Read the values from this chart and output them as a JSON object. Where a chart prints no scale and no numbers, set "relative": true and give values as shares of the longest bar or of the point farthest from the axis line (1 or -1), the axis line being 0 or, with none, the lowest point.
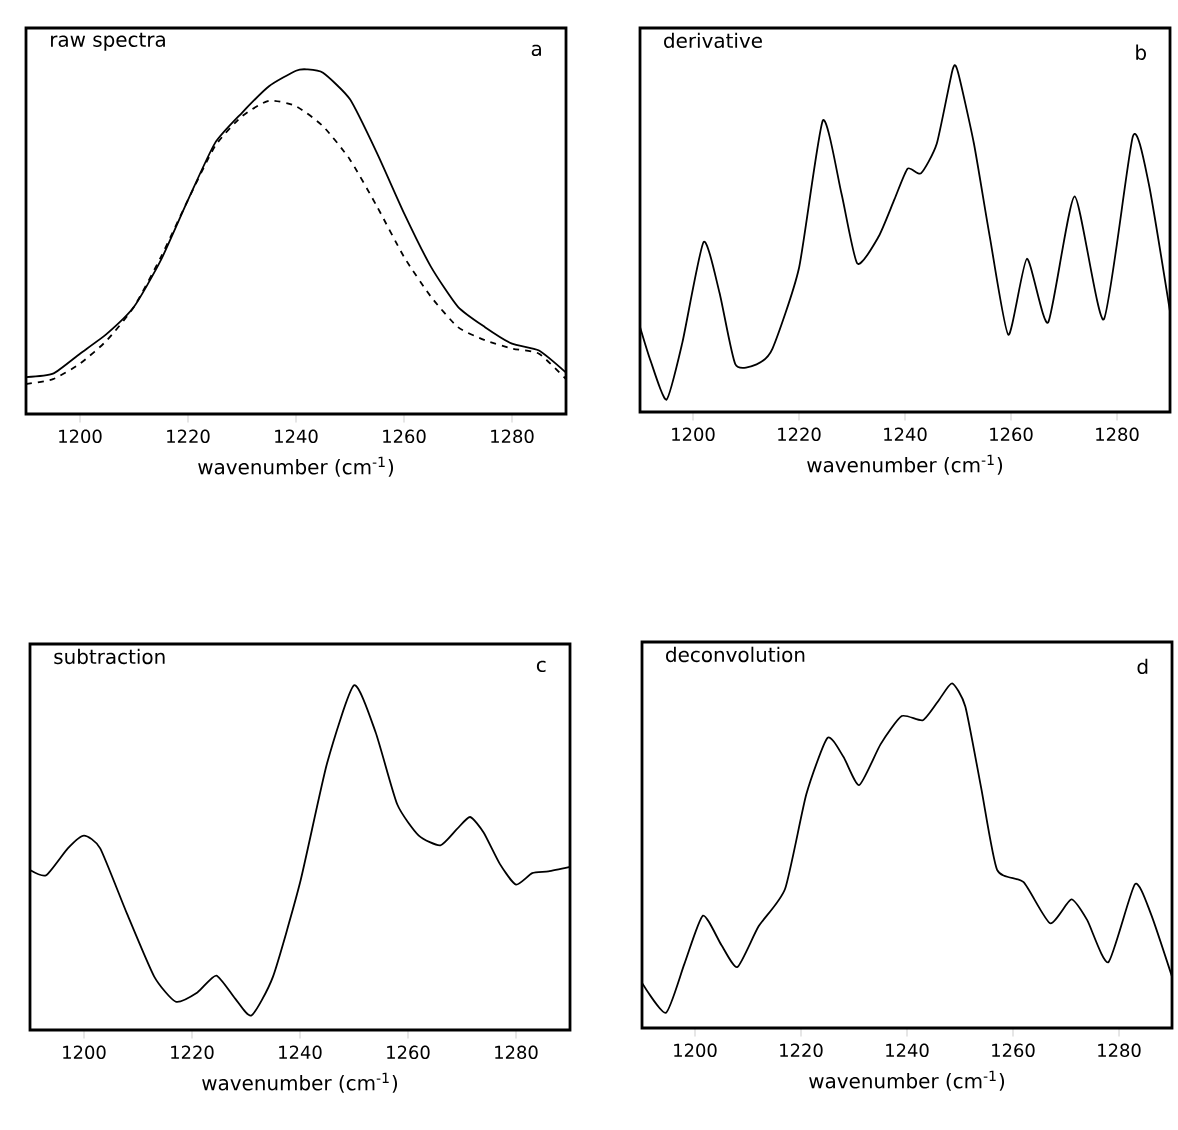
{
  "chart_data": [
    {
      "type": "line",
      "title": "raw spectra",
      "annotations": [
        "a"
      ],
      "xlabel": "wavenumber (cm$^{-1}$)",
      "relative": true,
      "xlim": [
        1190,
        1290
      ],
      "xticks": [
        1200,
        1220,
        1240,
        1260,
        1280
      ],
      "series": [
        {
          "color": "#000000",
          "line_style": "solid",
          "x": [
            1190,
            1195,
            1200,
            1205,
            1210,
            1215,
            1220,
            1225,
            1230,
            1235,
            1240,
            1242,
            1245,
            1250,
            1255,
            1260,
            1265,
            1270,
            1275,
            1280,
            1285,
            1290
          ],
          "values": [
            0.107,
            0.117,
            0.175,
            0.233,
            0.311,
            0.447,
            0.621,
            0.786,
            0.874,
            0.951,
            0.996,
            1.0,
            0.99,
            0.913,
            0.757,
            0.583,
            0.427,
            0.311,
            0.252,
            0.204,
            0.184,
            0.12
          ]
        },
        {
          "color": "#000000",
          "line_style": "dashed",
          "x": [
            1190,
            1195,
            1200,
            1205,
            1210,
            1215,
            1220,
            1225,
            1230,
            1235,
            1240,
            1245,
            1250,
            1255,
            1260,
            1265,
            1270,
            1275,
            1280,
            1285,
            1290
          ],
          "values": [
            0.087,
            0.101,
            0.146,
            0.214,
            0.311,
            0.456,
            0.621,
            0.777,
            0.864,
            0.909,
            0.893,
            0.835,
            0.738,
            0.602,
            0.456,
            0.34,
            0.252,
            0.214,
            0.19,
            0.175,
            0.101
          ]
        }
      ]
    },
    {
      "type": "line",
      "title": "derivative",
      "annotations": [
        "b"
      ],
      "xlabel": "wavenumber (cm$^{-1}$)",
      "relative": true,
      "xlim": [
        1190,
        1290
      ],
      "xticks": [
        1200,
        1220,
        1240,
        1260,
        1280
      ],
      "series": [
        {
          "color": "#000000",
          "x": [
            1190,
            1192,
            1195,
            1198,
            1202,
            1205,
            1208,
            1212,
            1215,
            1220,
            1224.5,
            1228,
            1231,
            1235,
            1238,
            1240.5,
            1243,
            1246,
            1249,
            1250,
            1253,
            1256,
            1259.5,
            1263,
            1267,
            1272,
            1277.5,
            1283,
            1286,
            1290
          ],
          "values": [
            0.248,
            0.149,
            0.036,
            0.203,
            0.496,
            0.348,
            0.139,
            0.139,
            0.185,
            0.42,
            0.85,
            0.638,
            0.433,
            0.511,
            0.62,
            0.71,
            0.696,
            0.783,
            1.0,
            0.991,
            0.783,
            0.511,
            0.225,
            0.447,
            0.261,
            0.629,
            0.27,
            0.804,
            0.665,
            0.293
          ]
        }
      ]
    },
    {
      "type": "line",
      "title": "subtraction",
      "annotations": [
        "c"
      ],
      "xlabel": "wavenumber (cm$^{-1}$)",
      "relative": true,
      "xlim": [
        1190,
        1290
      ],
      "xticks": [
        1200,
        1220,
        1240,
        1260,
        1280
      ],
      "series": [
        {
          "color": "#000000",
          "x": [
            1190,
            1193,
            1197,
            1200,
            1203,
            1208,
            1213,
            1217,
            1221,
            1224.5,
            1228,
            1231,
            1235,
            1240,
            1245,
            1250,
            1254,
            1258,
            1262,
            1266,
            1269,
            1271.5,
            1274,
            1277,
            1280,
            1283,
            1286,
            1290
          ],
          "values": [
            0.464,
            0.449,
            0.527,
            0.564,
            0.527,
            0.336,
            0.155,
            0.082,
            0.109,
            0.158,
            0.091,
            0.042,
            0.155,
            0.427,
            0.773,
            1.0,
            0.864,
            0.655,
            0.564,
            0.536,
            0.582,
            0.618,
            0.573,
            0.482,
            0.422,
            0.455,
            0.46,
            0.473
          ]
        }
      ]
    },
    {
      "type": "line",
      "title": "deconvolution",
      "annotations": [
        "d"
      ],
      "xlabel": "wavenumber (cm$^{-1}$)",
      "relative": true,
      "xlim": [
        1190,
        1290
      ],
      "xticks": [
        1200,
        1220,
        1240,
        1260,
        1280
      ],
      "series": [
        {
          "color": "#000000",
          "x": [
            1190,
            1194.5,
            1198,
            1201.5,
            1205,
            1208,
            1212,
            1217,
            1221,
            1225,
            1228,
            1231,
            1235,
            1239,
            1243,
            1246,
            1248.5,
            1251,
            1254,
            1257,
            1262,
            1267,
            1271,
            1274,
            1278,
            1283,
            1286,
            1290
          ],
          "values": [
            0.131,
            0.044,
            0.186,
            0.326,
            0.24,
            0.177,
            0.295,
            0.404,
            0.678,
            0.842,
            0.787,
            0.705,
            0.823,
            0.905,
            0.893,
            0.951,
            1.0,
            0.933,
            0.696,
            0.459,
            0.423,
            0.304,
            0.373,
            0.313,
            0.191,
            0.417,
            0.332,
            0.149
          ]
        }
      ]
    }
  ]
}
